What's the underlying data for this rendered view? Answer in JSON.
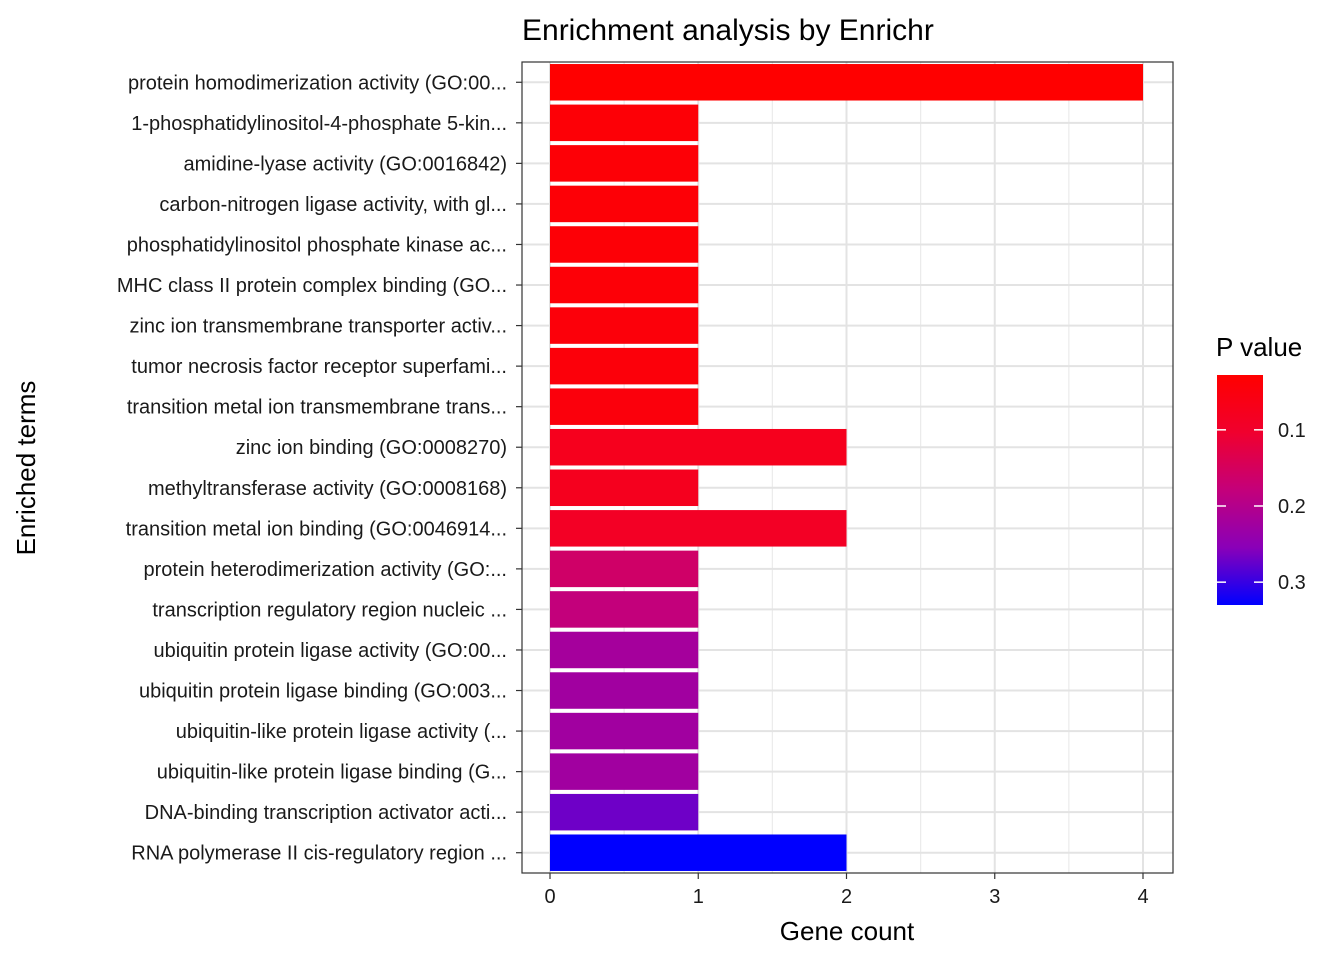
{
  "chart_data": {
    "type": "bar",
    "orientation": "horizontal",
    "title": "Enrichment analysis by Enrichr",
    "xlabel": "Gene count",
    "ylabel": "Enriched terms",
    "xlim": [
      0,
      4.2
    ],
    "xticks": [
      0,
      1,
      2,
      3,
      4
    ],
    "grid": true,
    "legend_position": "right",
    "categories": [
      "protein homodimerization activity (GO:00...",
      "1-phosphatidylinositol-4-phosphate 5-kin...",
      "amidine-lyase activity (GO:0016842)",
      "carbon-nitrogen ligase activity, with gl...",
      "phosphatidylinositol phosphate kinase ac...",
      "MHC class II protein complex binding (GO...",
      "zinc ion transmembrane transporter activ...",
      "tumor necrosis factor receptor superfami...",
      "transition metal ion transmembrane trans...",
      "zinc ion binding (GO:0008270)",
      "methyltransferase activity (GO:0008168)",
      "transition metal ion binding (GO:0046914...",
      "protein heterodimerization activity (GO:...",
      "transcription regulatory region nucleic ...",
      "ubiquitin protein ligase activity (GO:00...",
      "ubiquitin protein ligase binding (GO:003...",
      "ubiquitin-like protein ligase activity (...",
      "ubiquitin-like protein ligase binding (G...",
      "DNA-binding transcription activator acti...",
      "RNA polymerase II cis-regulatory region ..."
    ],
    "values": [
      4,
      1,
      1,
      1,
      1,
      1,
      1,
      1,
      1,
      2,
      1,
      2,
      1,
      1,
      1,
      1,
      1,
      1,
      1,
      2
    ],
    "p_values": [
      0.028,
      0.038,
      0.038,
      0.038,
      0.038,
      0.04,
      0.045,
      0.045,
      0.048,
      0.075,
      0.078,
      0.088,
      0.16,
      0.18,
      0.22,
      0.225,
      0.225,
      0.225,
      0.27,
      0.33
    ],
    "legend": {
      "title": "P value",
      "ticks": [
        "0.1",
        "0.2",
        "0.3"
      ],
      "tick_values": [
        0.1,
        0.2,
        0.3
      ],
      "range": [
        0.028,
        0.33
      ],
      "color_low": "#FF0000",
      "color_high": "#0000FF"
    }
  }
}
